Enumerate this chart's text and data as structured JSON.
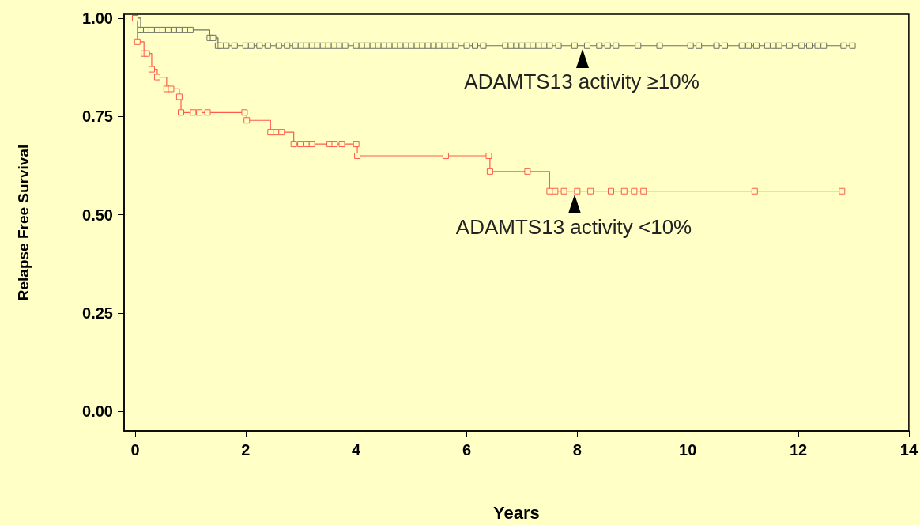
{
  "chart_data": {
    "type": "step",
    "xlabel": "Years",
    "ylabel": "Relapse Free Survival",
    "xlim": [
      -0.2,
      14
    ],
    "xticks": [
      0,
      2,
      4,
      6,
      8,
      10,
      12,
      14
    ],
    "ylim": [
      -0.05,
      1.01
    ],
    "yticks": [
      {
        "value": 0,
        "label": "0.00"
      },
      {
        "value": 0.25,
        "label": "0.25"
      },
      {
        "value": 0.5,
        "label": "0.50"
      },
      {
        "value": 0.75,
        "label": "0.75"
      },
      {
        "value": 1,
        "label": "1.00"
      }
    ],
    "marker": "square",
    "series": [
      {
        "color": "#6f7268",
        "x": [
          0,
          0.1,
          0.2,
          0.3,
          0.4,
          0.5,
          0.6,
          0.7,
          0.8,
          0.9,
          1.0,
          1.35,
          1.41,
          1.5,
          1.55,
          1.65,
          1.8,
          2.0,
          2.1,
          2.25,
          2.4,
          2.6,
          2.75,
          2.9,
          3.0,
          3.1,
          3.2,
          3.3,
          3.4,
          3.5,
          3.6,
          3.7,
          3.8,
          4.0,
          4.1,
          4.2,
          4.3,
          4.4,
          4.5,
          4.6,
          4.7,
          4.8,
          4.9,
          5.0,
          5.1,
          5.2,
          5.3,
          5.4,
          5.5,
          5.6,
          5.7,
          5.8,
          6.0,
          6.15,
          6.3,
          6.7,
          6.8,
          6.9,
          7.0,
          7.1,
          7.2,
          7.3,
          7.4,
          7.5,
          7.66,
          7.95,
          8.18,
          8.4,
          8.55,
          8.7,
          9.1,
          9.49,
          10.05,
          10.2,
          10.52,
          10.67,
          10.98,
          11.1,
          11.24,
          11.44,
          11.55,
          11.65,
          11.84,
          12.06,
          12.2,
          12.35,
          12.46,
          12.82,
          12.98
        ],
        "values": [
          1.0,
          0.97,
          0.97,
          0.97,
          0.97,
          0.97,
          0.97,
          0.97,
          0.97,
          0.97,
          0.97,
          0.95,
          0.95,
          0.93,
          0.93,
          0.93,
          0.93,
          0.93,
          0.93,
          0.93,
          0.93,
          0.93,
          0.93,
          0.93,
          0.93,
          0.93,
          0.93,
          0.93,
          0.93,
          0.93,
          0.93,
          0.93,
          0.93,
          0.93,
          0.93,
          0.93,
          0.93,
          0.93,
          0.93,
          0.93,
          0.93,
          0.93,
          0.93,
          0.93,
          0.93,
          0.93,
          0.93,
          0.93,
          0.93,
          0.93,
          0.93,
          0.93,
          0.93,
          0.93,
          0.93,
          0.93,
          0.93,
          0.93,
          0.93,
          0.93,
          0.93,
          0.93,
          0.93,
          0.93,
          0.93,
          0.93,
          0.93,
          0.93,
          0.93,
          0.93,
          0.93,
          0.93,
          0.93,
          0.93,
          0.93,
          0.93,
          0.93,
          0.93,
          0.93,
          0.93,
          0.93,
          0.93,
          0.93,
          0.93,
          0.93,
          0.93,
          0.93,
          0.93,
          0.93
        ]
      },
      {
        "color": "#ff5a4e",
        "x": [
          0,
          0.04,
          0.16,
          0.21,
          0.3,
          0.4,
          0.57,
          0.65,
          0.8,
          0.83,
          1.05,
          1.16,
          1.31,
          1.98,
          2.02,
          2.45,
          2.55,
          2.65,
          2.87,
          2.99,
          3.1,
          3.2,
          3.52,
          3.61,
          3.74,
          4.0,
          4.02,
          5.62,
          6.4,
          6.42,
          7.1,
          7.5,
          7.6,
          7.76,
          8.0,
          8.24,
          8.61,
          8.85,
          9.03,
          9.2,
          11.21,
          12.79
        ],
        "values": [
          1.0,
          0.94,
          0.91,
          0.91,
          0.87,
          0.85,
          0.82,
          0.82,
          0.8,
          0.76,
          0.76,
          0.76,
          0.76,
          0.76,
          0.74,
          0.71,
          0.71,
          0.71,
          0.68,
          0.68,
          0.68,
          0.68,
          0.68,
          0.68,
          0.68,
          0.68,
          0.65,
          0.65,
          0.65,
          0.61,
          0.61,
          0.56,
          0.56,
          0.56,
          0.56,
          0.56,
          0.56,
          0.56,
          0.56,
          0.56,
          0.56,
          0.56
        ]
      }
    ],
    "annotations": [
      {
        "text": "ADAMTS13 activity ≥10%",
        "x": 8.1,
        "y": 0.93
      },
      {
        "text": "ADAMTS13 activity <10%",
        "x": 7.95,
        "y": 0.56
      }
    ]
  }
}
